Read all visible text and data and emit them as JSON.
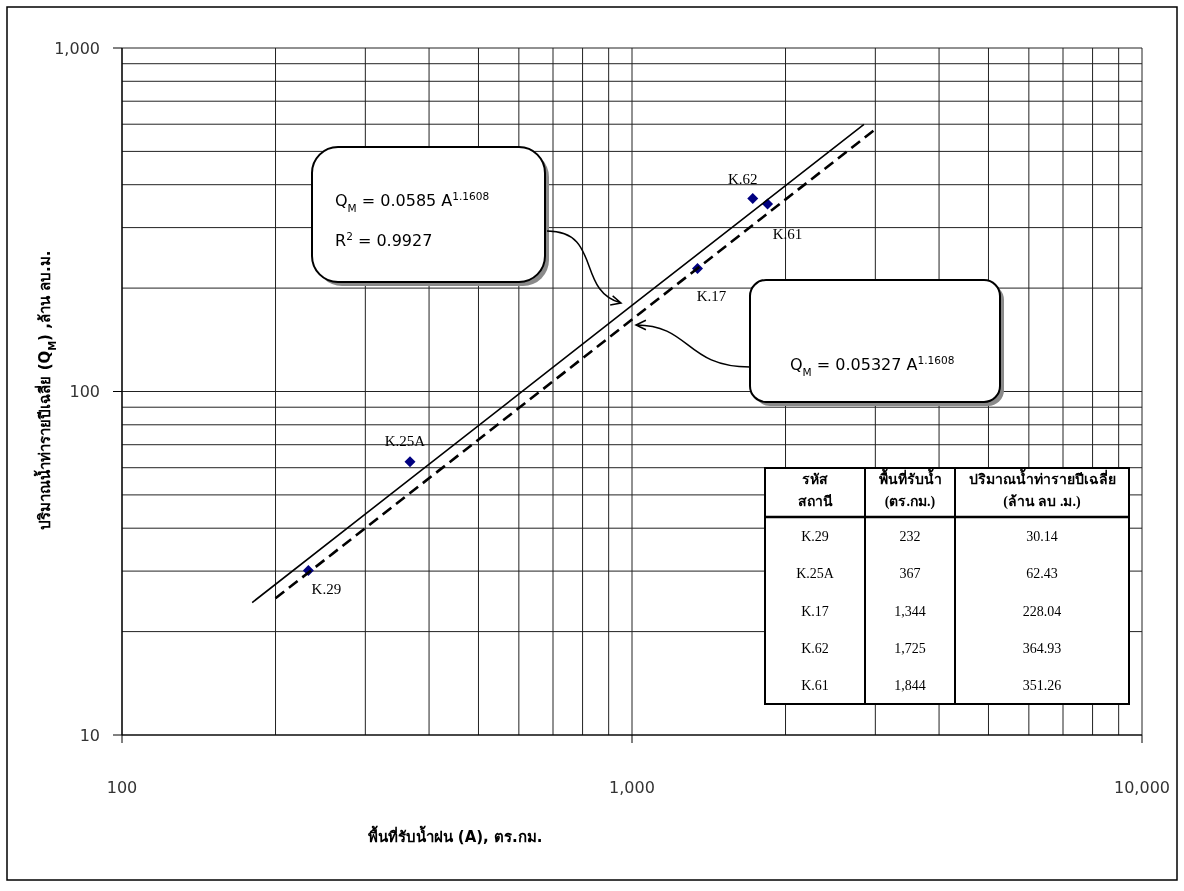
{
  "chart_data": {
    "type": "scatter",
    "xlabel": "พื้นที่รับน้ำฝน (A), ตร.กม.",
    "ylabel": "ปริมาณน้ำท่ารายปีเฉลี่ย (Q$_{M}$) ,ล้าน ลบ.ม.",
    "log": "xy",
    "xlim": [
      100,
      10000
    ],
    "ylim": [
      10,
      1000
    ],
    "xticks": [
      100,
      {
        "value": 200,
        "label": null
      },
      {
        "value": 300,
        "label": null
      },
      {
        "value": 400,
        "label": null
      },
      {
        "value": 500,
        "label": null
      },
      {
        "value": 600,
        "label": null
      },
      {
        "value": 700,
        "label": null
      },
      {
        "value": 800,
        "label": null
      },
      {
        "value": 900,
        "label": null
      },
      {
        "value": 1000,
        "label": "1,000"
      },
      {
        "value": 2000,
        "label": null
      },
      {
        "value": 3000,
        "label": null
      },
      {
        "value": 4000,
        "label": null
      },
      {
        "value": 5000,
        "label": null
      },
      {
        "value": 6000,
        "label": null
      },
      {
        "value": 7000,
        "label": null
      },
      {
        "value": 8000,
        "label": null
      },
      {
        "value": 9000,
        "label": null
      },
      {
        "value": 10000,
        "label": "10,000"
      }
    ],
    "yticks": [
      10,
      {
        "value": 20,
        "label": null
      },
      {
        "value": 30,
        "label": null
      },
      {
        "value": 40,
        "label": null
      },
      {
        "value": 50,
        "label": null
      },
      {
        "value": 60,
        "label": null
      },
      {
        "value": 70,
        "label": null
      },
      {
        "value": 80,
        "label": null
      },
      {
        "value": 90,
        "label": null
      },
      100,
      {
        "value": 200,
        "label": null
      },
      {
        "value": 300,
        "label": null
      },
      {
        "value": 400,
        "label": null
      },
      {
        "value": 500,
        "label": null
      },
      {
        "value": 600,
        "label": null
      },
      {
        "value": 700,
        "label": null
      },
      {
        "value": 800,
        "label": null
      },
      {
        "value": 900,
        "label": null
      },
      {
        "value": 1000,
        "label": "1,000"
      }
    ],
    "grid": true,
    "series": [
      {
        "type": "scatter",
        "color": "#000080",
        "marker": "diamond",
        "x": [
          232,
          367,
          1344,
          1725,
          1844
        ],
        "values": [
          30.14,
          62.43,
          228.04,
          364.93,
          351.26
        ]
      },
      {
        "type": "line",
        "color": "#000000",
        "line_style": "solid",
        "marker": "none",
        "x": [
          180,
          1000,
          2850
        ],
        "values": [
          24.3,
          178,
          599
        ]
      },
      {
        "type": "line",
        "color": "#000000",
        "line_style": "dashed",
        "marker": "none",
        "x": [
          200,
          1000,
          3000
        ],
        "values": [
          25,
          162,
          580
        ]
      }
    ],
    "annotations": [
      {
        "text": "K.29",
        "x": 232,
        "y": 30.14
      },
      {
        "text": "K.25A",
        "x": 367,
        "y": 62.43
      },
      {
        "text": "K.17",
        "x": 1344,
        "y": 228.04
      },
      {
        "text": "K.62",
        "x": 1725,
        "y": 364.93
      },
      {
        "text": "K.61",
        "x": 1844,
        "y": 351.26
      },
      "Q$_{M}$ = 0.0585 A$^{1.1608}$",
      "R$^{2}$ = 0.9927",
      "Q$_{M}$ = 0.05327 A$^{1.1608}$",
      "รหัส สถานี",
      "พื้นที่รับน้ำ (ตร.กม.)",
      "ปริมาณน้ำท่ารายปีเฉลี่ย (ล้าน ลบ .ม.)",
      "K.29",
      "232",
      "30.14",
      "K.25A",
      "367",
      "62.43",
      "K.17",
      "1,344",
      "228.04",
      "K.62",
      "1,725",
      "364.93",
      "K.61",
      "1,844",
      "351.26"
    ]
  }
}
